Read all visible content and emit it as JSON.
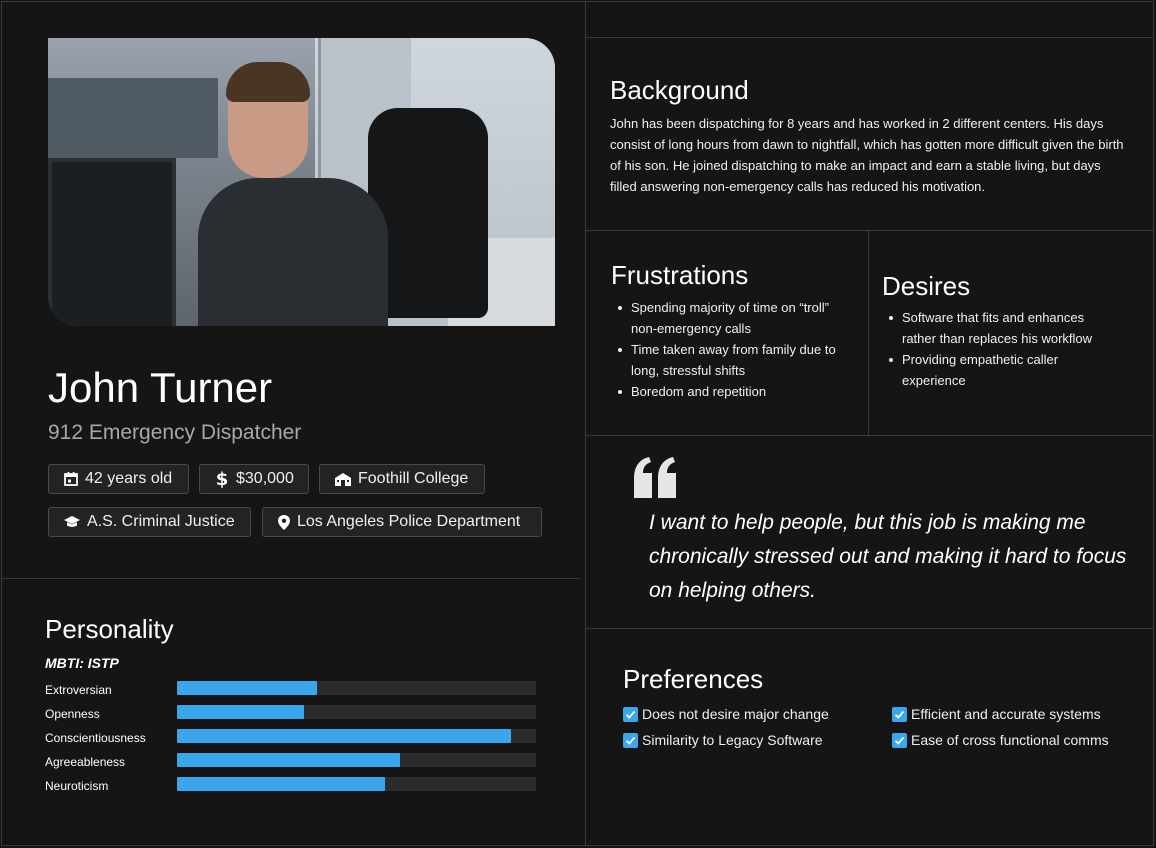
{
  "profile": {
    "name": "John Turner",
    "role": "912 Emergency Dispatcher",
    "photo_icon": "person-photo",
    "chips": {
      "age": "42 years old",
      "income": "$30,000",
      "school": "Foothill College",
      "degree": "A.S. Criminal Justice",
      "employer": "Los Angeles Police Department"
    }
  },
  "personality": {
    "title": "Personality",
    "mbti": "MBTI: ISTP",
    "traits": [
      {
        "label": "Extroversian",
        "value": 0.39
      },
      {
        "label": "Openness",
        "value": 0.355
      },
      {
        "label": "Conscientiousness",
        "value": 0.93
      },
      {
        "label": "Agreeableness",
        "value": 0.62
      },
      {
        "label": "Neuroticism",
        "value": 0.58
      }
    ]
  },
  "background": {
    "title": "Background",
    "text": "John has been dispatching for 8 years and has worked in 2 different centers. His days consist of long hours from dawn to nightfall, which has gotten more difficult given the birth of his son. He joined dispatching to make an impact and earn a stable living, but days filled answering non-emergency calls has reduced his motivation."
  },
  "frustrations": {
    "title": "Frustrations",
    "items": [
      "Spending majority of time on “troll” non-emergency calls",
      "Time taken away from family due to long, stressful shifts",
      "Boredom and repetition"
    ]
  },
  "desires": {
    "title": "Desires",
    "items": [
      "Software that fits and enhances rather than replaces his workflow",
      "Providing empathetic caller experience"
    ]
  },
  "quote": {
    "icon": "quote-icon",
    "text": "I want to help people, but this job is making me chronically stressed out and making it hard to focus on helping others."
  },
  "preferences": {
    "title": "Preferences",
    "items": [
      {
        "label": "Does not desire major change",
        "checked": true
      },
      {
        "label": "Similarity to Legacy Software",
        "checked": true
      },
      {
        "label": "Efficient and accurate systems",
        "checked": true
      },
      {
        "label": "Ease of cross functional comms",
        "checked": true
      }
    ]
  },
  "colors": {
    "background": "#151515",
    "accent": "#3aa6ec",
    "divider": "#3a3a3a",
    "muted_text": "#a8a8a8"
  }
}
